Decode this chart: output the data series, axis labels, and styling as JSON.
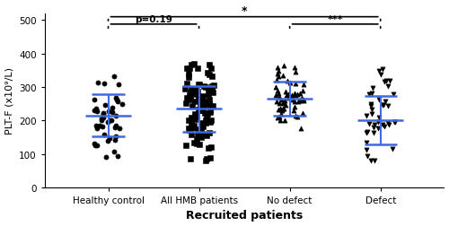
{
  "groups": [
    "Healthy control",
    "All HMB patients",
    "No defect",
    "Defect"
  ],
  "xlabel": "Recruited patients",
  "ylabel": "PLT-F (x10⁹/L)",
  "ylim": [
    0,
    520
  ],
  "yticks": [
    0,
    100,
    200,
    300,
    400,
    500
  ],
  "means": [
    215,
    235,
    265,
    200
  ],
  "sds": [
    63,
    68,
    52,
    72
  ],
  "marker_color": "black",
  "errorbar_color": "#4169E1",
  "markers": [
    "o",
    "s",
    "^",
    "v"
  ],
  "n_points": [
    43,
    103,
    61,
    42
  ],
  "seed": 42,
  "point_size": 14,
  "jitter": 0.16,
  "bracket_lw": 1.2,
  "figsize": [
    5.0,
    2.53
  ],
  "dpi": 100
}
